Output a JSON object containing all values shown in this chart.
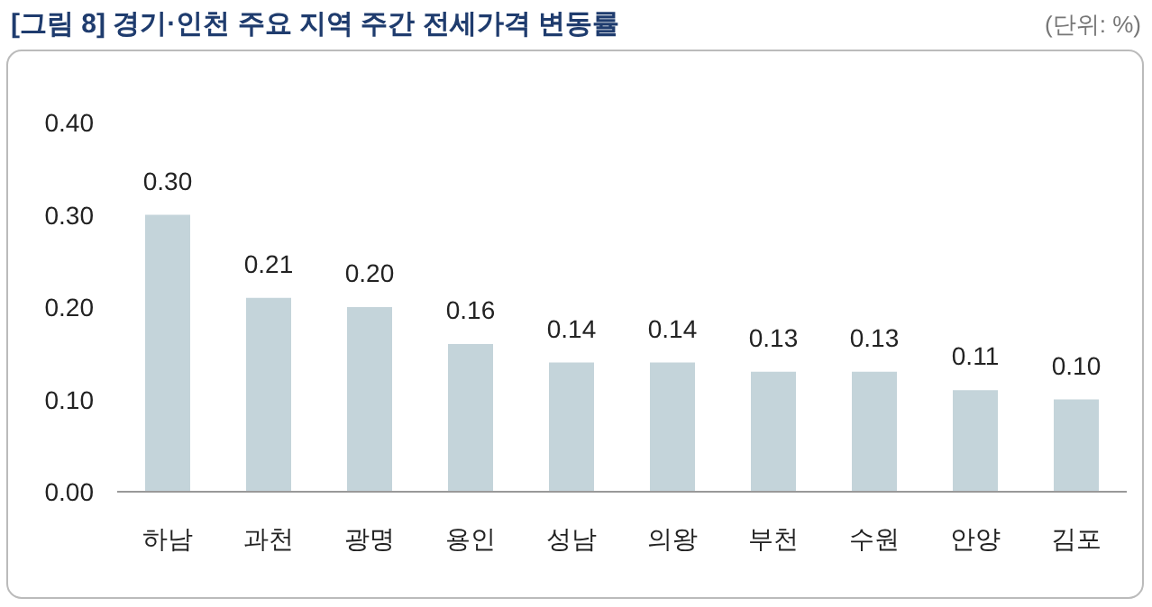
{
  "chart_data": {
    "type": "bar",
    "title": "[그림 8] 경기·인천 주요 지역 주간 전세가격 변동률",
    "annotations": [
      "(단위: %)"
    ],
    "categories": [
      "하남",
      "과천",
      "광명",
      "용인",
      "성남",
      "의왕",
      "부천",
      "수원",
      "안양",
      "김포"
    ],
    "values": [
      0.3,
      0.21,
      0.2,
      0.16,
      0.14,
      0.14,
      0.13,
      0.13,
      0.11,
      0.1
    ],
    "value_labels": [
      "0.30",
      "0.21",
      "0.20",
      "0.16",
      "0.14",
      "0.14",
      "0.13",
      "0.13",
      "0.11",
      "0.10"
    ],
    "color": "#c4d4da",
    "ylim": [
      0,
      0.4
    ],
    "yticks": [
      {
        "value": 0,
        "label": "0.00"
      },
      {
        "value": 0.1,
        "label": "0.10"
      },
      {
        "value": 0.2,
        "label": "0.20"
      },
      {
        "value": 0.3,
        "label": "0.30"
      },
      {
        "value": 0.4,
        "label": "0.40"
      }
    ],
    "grid": false
  }
}
